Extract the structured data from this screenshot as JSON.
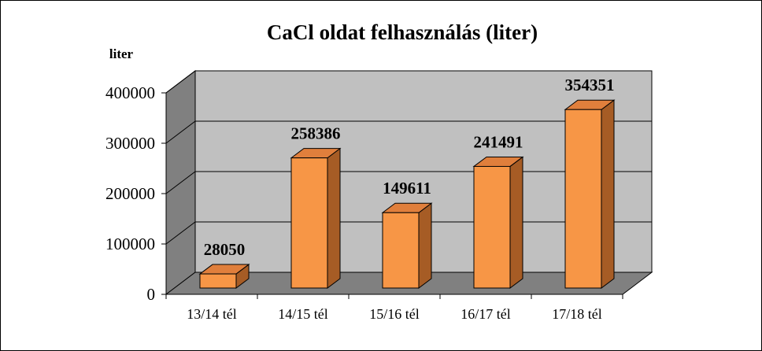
{
  "chart_data": {
    "type": "bar",
    "title": "CaCl oldat felhasználás  (liter)",
    "ylabel": "liter",
    "xlabel": "",
    "categories": [
      "13/14 tél",
      "14/15 tél",
      "15/16 tél",
      "16/17 tél",
      "17/18 tél"
    ],
    "values": [
      28050,
      258386,
      149611,
      241491,
      354351
    ],
    "data_labels": [
      "28050",
      "258386",
      "149611",
      "241491",
      "354351"
    ],
    "ylim": [
      0,
      400000
    ],
    "yticks": [
      0,
      100000,
      200000,
      300000,
      400000
    ],
    "ytick_labels": [
      "0",
      "100000",
      "200000",
      "300000",
      "400000"
    ],
    "grid": true,
    "legend": "none",
    "style": "3d-column",
    "colors": {
      "bar_front": "#F79646",
      "bar_top": "#E07F3C",
      "bar_side": "#A65C25",
      "back_wall": "#C0C0C0",
      "side_wall": "#808080",
      "floor": "#808080"
    }
  }
}
